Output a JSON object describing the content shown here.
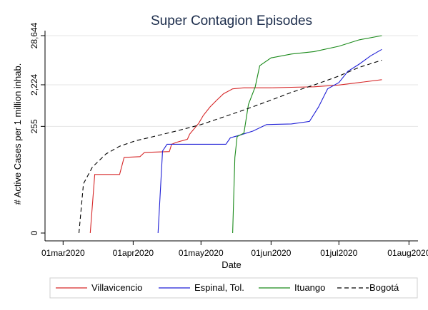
{
  "chart_data": {
    "type": "line",
    "title": "Super Contagion Episodes",
    "xlabel": "Date",
    "ylabel": "# Active Cases per 1 million inhab.",
    "x_ticks": [
      "01mar2020",
      "01apr2020",
      "01may2020",
      "01jun2020",
      "01jul2020",
      "01aug2020"
    ],
    "y_ticks": [
      "0",
      "255",
      "2,224",
      "28,644"
    ],
    "y_scale": "log",
    "xlim": [
      "2020-02-22",
      "2020-08-05"
    ],
    "grid": "horizontal",
    "legend_position": "bottom",
    "series": [
      {
        "name": "Villavicencio",
        "color": "#d62728",
        "dash": "solid",
        "points": [
          [
            "2020-03-13",
            0
          ],
          [
            "2020-03-15",
            20
          ],
          [
            "2020-03-26",
            20
          ],
          [
            "2020-03-28",
            50
          ],
          [
            "2020-04-04",
            52
          ],
          [
            "2020-04-06",
            65
          ],
          [
            "2020-04-17",
            68
          ],
          [
            "2020-04-18",
            100
          ],
          [
            "2020-04-20",
            110
          ],
          [
            "2020-04-25",
            130
          ],
          [
            "2020-04-26",
            170
          ],
          [
            "2020-04-30",
            300
          ],
          [
            "2020-05-02",
            450
          ],
          [
            "2020-05-05",
            700
          ],
          [
            "2020-05-08",
            1000
          ],
          [
            "2020-05-11",
            1400
          ],
          [
            "2020-05-15",
            1800
          ],
          [
            "2020-05-20",
            1900
          ],
          [
            "2020-06-01",
            1900
          ],
          [
            "2020-06-10",
            1950
          ],
          [
            "2020-06-20",
            2000
          ],
          [
            "2020-07-01",
            2200
          ],
          [
            "2020-07-10",
            2500
          ],
          [
            "2020-07-20",
            2900
          ]
        ]
      },
      {
        "name": "Espinal, Tol.",
        "color": "#1f1fd6",
        "dash": "solid",
        "points": [
          [
            "2020-04-12",
            0
          ],
          [
            "2020-04-14",
            70
          ],
          [
            "2020-04-16",
            100
          ],
          [
            "2020-05-12",
            100
          ],
          [
            "2020-05-14",
            140
          ],
          [
            "2020-05-18",
            160
          ],
          [
            "2020-05-24",
            200
          ],
          [
            "2020-05-30",
            280
          ],
          [
            "2020-06-10",
            290
          ],
          [
            "2020-06-18",
            330
          ],
          [
            "2020-06-22",
            700
          ],
          [
            "2020-06-26",
            1800
          ],
          [
            "2020-07-01",
            2500
          ],
          [
            "2020-07-05",
            4500
          ],
          [
            "2020-07-10",
            6500
          ],
          [
            "2020-07-15",
            10000
          ],
          [
            "2020-07-20",
            14000
          ]
        ]
      },
      {
        "name": "Ituango",
        "color": "#1a8a1a",
        "dash": "solid",
        "points": [
          [
            "2020-05-15",
            0
          ],
          [
            "2020-05-16",
            50
          ],
          [
            "2020-05-17",
            150
          ],
          [
            "2020-05-20",
            180
          ],
          [
            "2020-05-22",
            800
          ],
          [
            "2020-05-25",
            2000
          ],
          [
            "2020-05-27",
            6000
          ],
          [
            "2020-06-01",
            9000
          ],
          [
            "2020-06-10",
            11000
          ],
          [
            "2020-06-20",
            12500
          ],
          [
            "2020-07-01",
            16500
          ],
          [
            "2020-07-10",
            23000
          ],
          [
            "2020-07-20",
            28644
          ]
        ]
      },
      {
        "name": "Bogotá",
        "color": "#000000",
        "dash": "dashed",
        "points": [
          [
            "2020-03-08",
            0
          ],
          [
            "2020-03-10",
            12
          ],
          [
            "2020-03-14",
            30
          ],
          [
            "2020-03-20",
            60
          ],
          [
            "2020-03-26",
            90
          ],
          [
            "2020-04-02",
            120
          ],
          [
            "2020-04-10",
            150
          ],
          [
            "2020-04-20",
            200
          ],
          [
            "2020-05-01",
            280
          ],
          [
            "2020-05-10",
            400
          ],
          [
            "2020-05-20",
            600
          ],
          [
            "2020-06-01",
            1000
          ],
          [
            "2020-06-10",
            1500
          ],
          [
            "2020-06-20",
            2200
          ],
          [
            "2020-07-01",
            3500
          ],
          [
            "2020-07-10",
            5500
          ],
          [
            "2020-07-20",
            8000
          ]
        ]
      }
    ]
  }
}
